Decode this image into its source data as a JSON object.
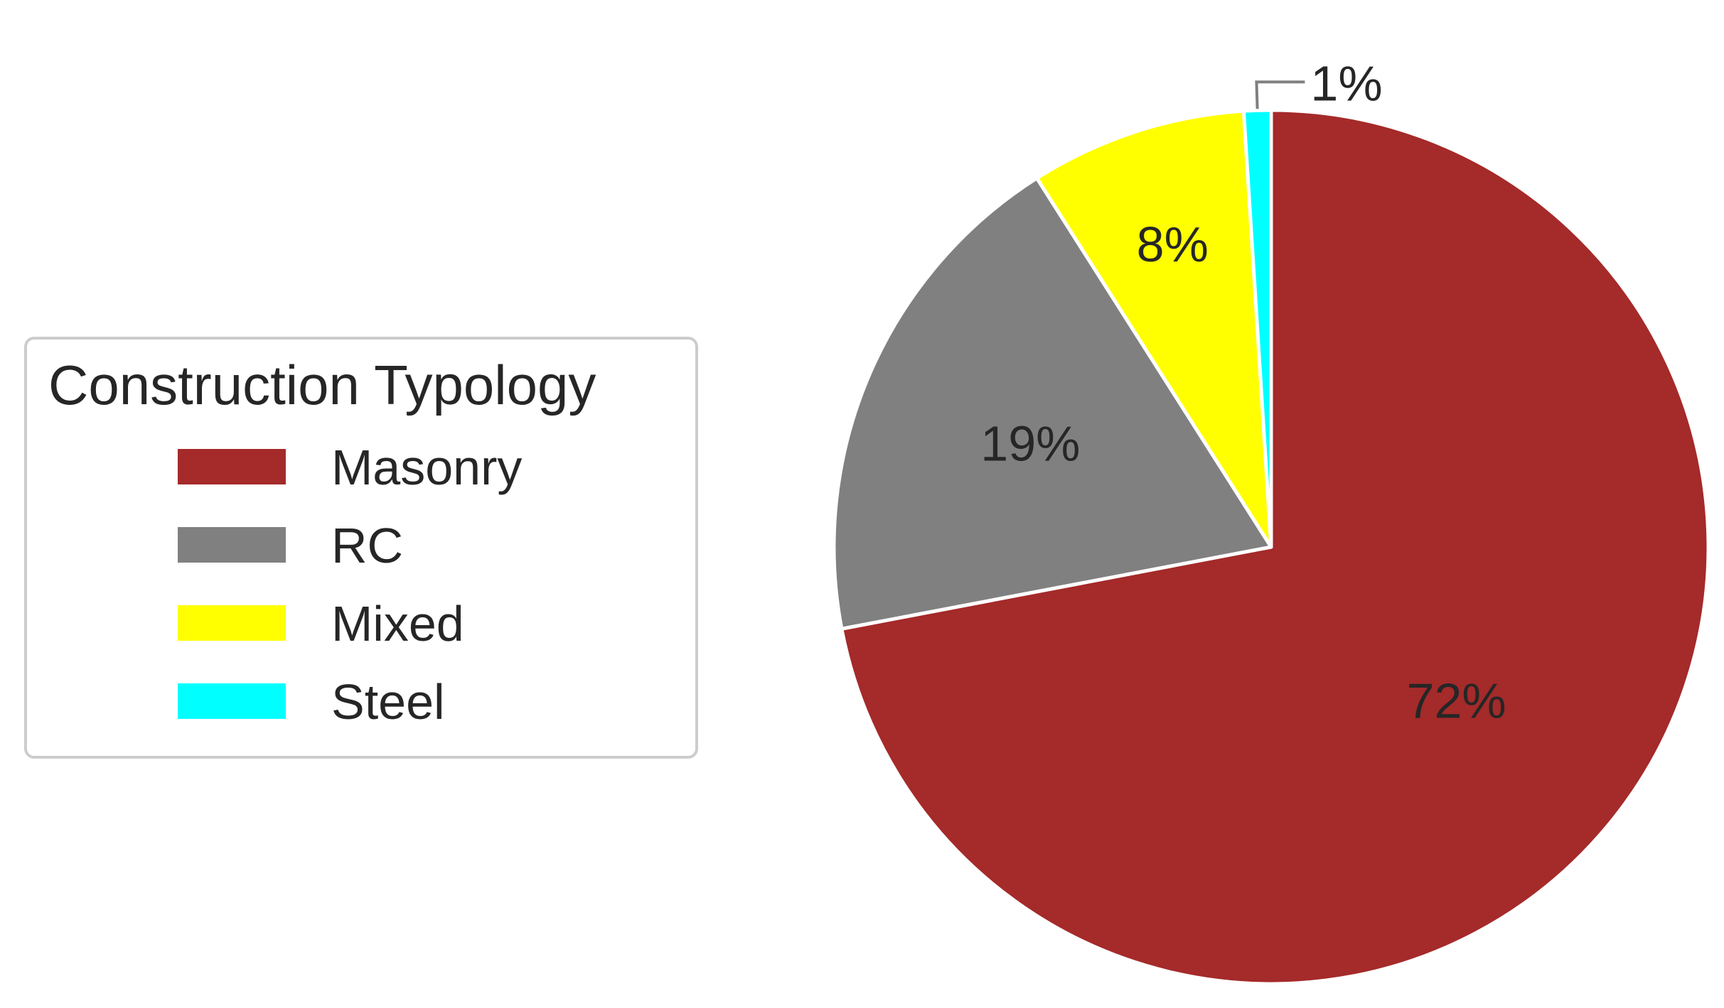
{
  "chart_data": {
    "type": "pie",
    "legend_title": "Construction Typology",
    "legend_position": "left",
    "slices": [
      {
        "label": "Masonry",
        "value": 72,
        "display": "72%",
        "color": "#A52A2A"
      },
      {
        "label": "RC",
        "value": 19,
        "display": "19%",
        "color": "#808080"
      },
      {
        "label": "Mixed",
        "value": 8,
        "display": "8%",
        "color": "#FFFF00"
      },
      {
        "label": "Steel",
        "value": 1,
        "display": "1%",
        "color": "#00FFFF"
      }
    ]
  }
}
